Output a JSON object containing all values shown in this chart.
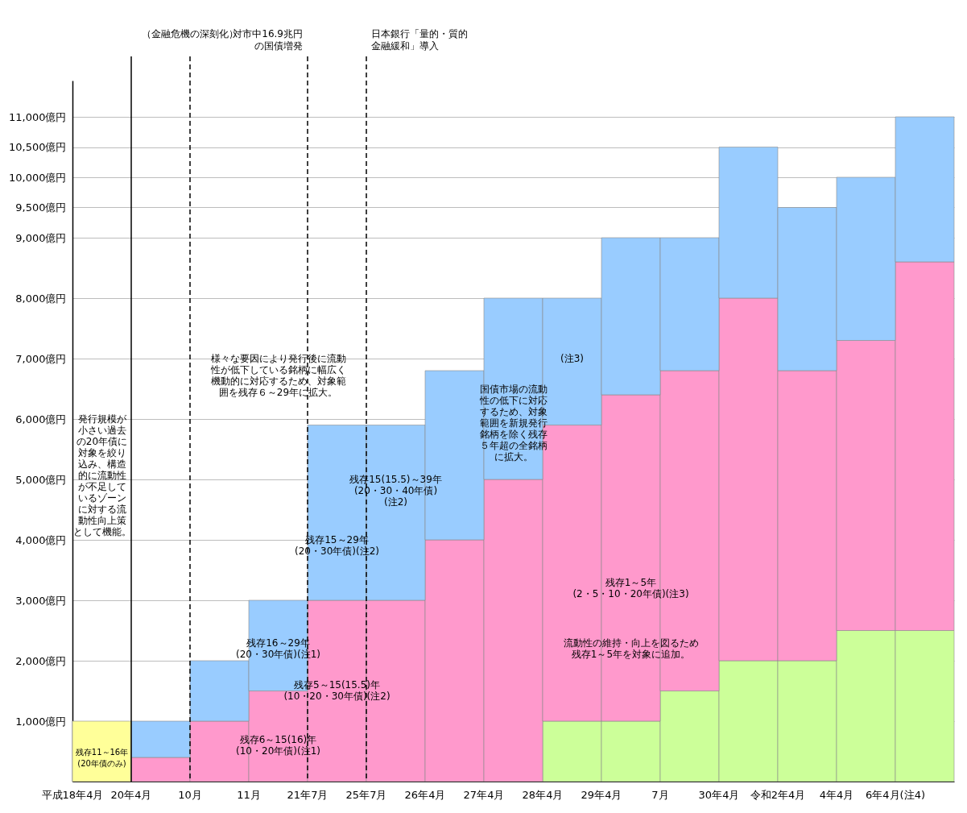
{
  "chart_data": {
    "type": "bar",
    "stacked": true,
    "legend": false,
    "grid": "y",
    "categories": [
      "平成18年4月",
      "20年4月",
      "10月",
      "11月",
      "21年7月",
      "25年7月",
      "26年4月",
      "27年4月",
      "28年4月",
      "29年4月",
      "7月",
      "30年4月",
      "令和2年4月",
      "4年4月",
      "6年4月(注4)"
    ],
    "series": [
      {
        "color": "#ffff99",
        "values": [
          1000,
          null,
          null,
          null,
          null,
          null,
          null,
          null,
          null,
          null,
          null,
          null,
          null,
          null,
          null
        ]
      },
      {
        "color": "#ccff99",
        "values": [
          null,
          null,
          null,
          null,
          null,
          null,
          null,
          null,
          1000,
          1000,
          1500,
          2000,
          2000,
          2500,
          2500
        ]
      },
      {
        "color": "#ff99cc",
        "values": [
          null,
          400,
          1000,
          1500,
          3000,
          3000,
          4000,
          5000,
          4900,
          5400,
          5300,
          6000,
          4800,
          4800,
          6100
        ]
      },
      {
        "color": "#99ccff",
        "values": [
          null,
          600,
          1000,
          1500,
          2900,
          2900,
          2800,
          3000,
          2100,
          2600,
          2200,
          2500,
          2700,
          2700,
          2400
        ]
      }
    ],
    "ylim": [
      0,
      11600
    ],
    "yticks": [
      {
        "value": 1000,
        "label": "1,000億円"
      },
      {
        "value": 2000,
        "label": "2,000億円"
      },
      {
        "value": 3000,
        "label": "3,000億円"
      },
      {
        "value": 4000,
        "label": "4,000億円"
      },
      {
        "value": 5000,
        "label": "5,000億円"
      },
      {
        "value": 6000,
        "label": "6,000億円"
      },
      {
        "value": 7000,
        "label": "7,000億円"
      },
      {
        "value": 8000,
        "label": "8,000億円"
      },
      {
        "value": 9000,
        "label": "9,000億円"
      },
      {
        "value": 9500,
        "label": "9,500億円"
      },
      {
        "value": 10000,
        "label": "10,000億円"
      },
      {
        "value": 10500,
        "label": "10,500億円"
      },
      {
        "value": 11000,
        "label": "11,000億円"
      }
    ],
    "ref_lines": [
      {
        "axis": "x",
        "value": "20年4月",
        "label": null,
        "line_style": "solid",
        "color": "#000000"
      },
      {
        "axis": "x",
        "value": "10月",
        "label": "（金融危機の深刻化）",
        "line_style": "dashed",
        "color": "#000000"
      },
      {
        "axis": "x",
        "value": "21年7月",
        "label": "対市中16.9兆円の国債増発",
        "line_style": "dashed",
        "color": "#000000"
      },
      {
        "axis": "x",
        "value": "25年7月",
        "label": "日本銀行「量的・質的金融緩和」導入",
        "line_style": "dashed",
        "color": "#000000"
      }
    ],
    "annotations": [
      "残存11～16年(20年債のみ)",
      "発行規模が小さい過去の20年債に対象を絞り込み、構造的に流動性が不足しているゾーンに対する流動性向上策として機能。",
      "様々な要因により発行後に流動性が低下している銘柄に幅広く機動的に対応するため、対象範囲を残存６～29年に拡大。",
      "残存6～15(16)年(10・20年債)(注1)",
      "残存16～29年(20・30年債)(注1)",
      "残存5～15(15.5)年(10・20・30年債)(注2)",
      "残存15～29年(20・30年債)(注2)",
      "残存15(15.5)～39年(20・30・40年債)(注2)",
      "国債市場の流動性の低下に対応するため、対象範囲を新規発行銘柄を除く残存５年超の全銘柄に拡大。",
      "(注3)",
      "残存1～5年(2・5・10・20年債)(注3)",
      "流動性の維持・向上を図るため残存1～5年を対象に追加。"
    ]
  }
}
